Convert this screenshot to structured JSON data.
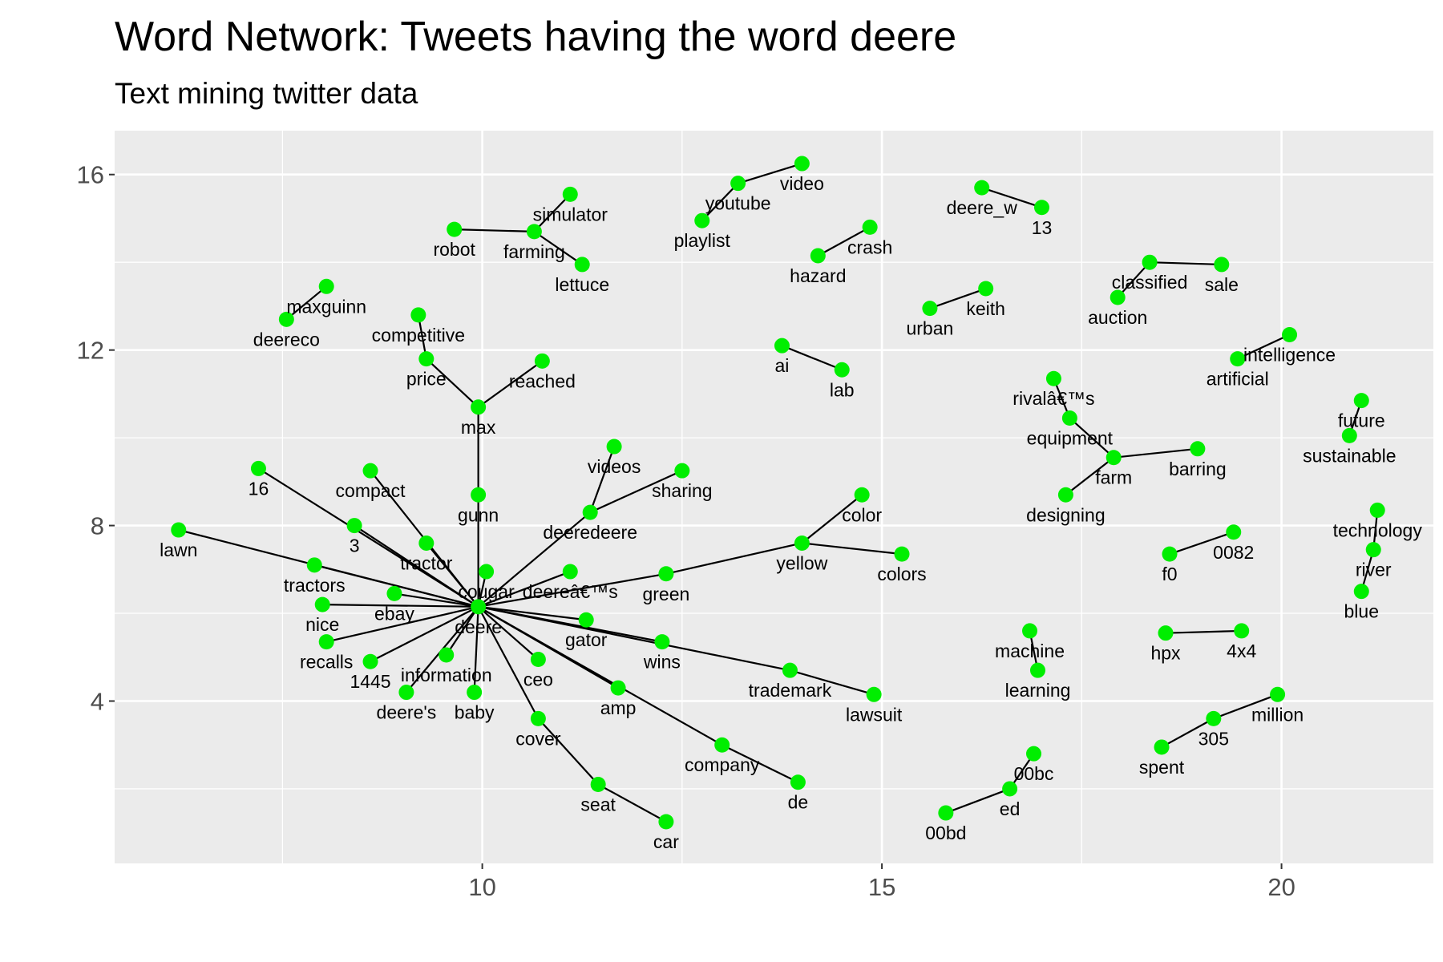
{
  "chart_data": {
    "type": "scatter",
    "title": "Word Network: Tweets having the word deere",
    "subtitle": "Text mining twitter data",
    "xlabel": "",
    "ylabel": "",
    "xlim": [
      5.4,
      21.9
    ],
    "ylim": [
      0.3,
      17.0
    ],
    "x_ticks": [
      10,
      15,
      20
    ],
    "y_ticks": [
      4,
      8,
      12,
      16
    ],
    "grid": true,
    "node_color": "#00ee00",
    "edge_color": "#000000",
    "panel_background": "#ebebeb",
    "nodes": [
      {
        "label": "deere",
        "x": 9.95,
        "y": 6.15
      },
      {
        "label": "lawn",
        "x": 6.2,
        "y": 7.9
      },
      {
        "label": "16",
        "x": 7.2,
        "y": 9.3
      },
      {
        "label": "compact",
        "x": 8.6,
        "y": 9.25
      },
      {
        "label": "3",
        "x": 8.4,
        "y": 8.0
      },
      {
        "label": "tractor",
        "x": 9.3,
        "y": 7.6
      },
      {
        "label": "tractors",
        "x": 7.9,
        "y": 7.1
      },
      {
        "label": "ebay",
        "x": 8.9,
        "y": 6.45
      },
      {
        "label": "nice",
        "x": 8.0,
        "y": 6.2
      },
      {
        "label": "recalls",
        "x": 8.05,
        "y": 5.35
      },
      {
        "label": "1445",
        "x": 8.6,
        "y": 4.9
      },
      {
        "label": "information",
        "x": 9.55,
        "y": 5.05
      },
      {
        "label": "deere's",
        "x": 9.05,
        "y": 4.2
      },
      {
        "label": "baby",
        "x": 9.9,
        "y": 4.2
      },
      {
        "label": "cougar",
        "x": 10.05,
        "y": 6.95
      },
      {
        "label": "deereâ€™s",
        "x": 11.1,
        "y": 6.95
      },
      {
        "label": "gator",
        "x": 11.3,
        "y": 5.85
      },
      {
        "label": "ceo",
        "x": 10.7,
        "y": 4.95
      },
      {
        "label": "cover",
        "x": 10.7,
        "y": 3.6
      },
      {
        "label": "seat",
        "x": 11.45,
        "y": 2.1
      },
      {
        "label": "car",
        "x": 12.3,
        "y": 1.25
      },
      {
        "label": "amp",
        "x": 11.7,
        "y": 4.3
      },
      {
        "label": "company",
        "x": 13.0,
        "y": 3.0
      },
      {
        "label": "de",
        "x": 13.95,
        "y": 2.15
      },
      {
        "label": "wins",
        "x": 12.25,
        "y": 5.35
      },
      {
        "label": "trademark",
        "x": 13.85,
        "y": 4.7
      },
      {
        "label": "lawsuit",
        "x": 14.9,
        "y": 4.15
      },
      {
        "label": "green",
        "x": 12.3,
        "y": 6.9
      },
      {
        "label": "yellow",
        "x": 14.0,
        "y": 7.6
      },
      {
        "label": "color",
        "x": 14.75,
        "y": 8.7
      },
      {
        "label": "colors",
        "x": 15.25,
        "y": 7.35
      },
      {
        "label": "deeredeere",
        "x": 11.35,
        "y": 8.3
      },
      {
        "label": "videos",
        "x": 11.65,
        "y": 9.8
      },
      {
        "label": "sharing",
        "x": 12.5,
        "y": 9.25
      },
      {
        "label": "gunn",
        "x": 9.95,
        "y": 8.7
      },
      {
        "label": "max",
        "x": 9.95,
        "y": 10.7
      },
      {
        "label": "price",
        "x": 9.3,
        "y": 11.8
      },
      {
        "label": "competitive",
        "x": 9.2,
        "y": 12.8
      },
      {
        "label": "reached",
        "x": 10.75,
        "y": 11.75
      },
      {
        "label": "deereco",
        "x": 7.55,
        "y": 12.7
      },
      {
        "label": "maxguinn",
        "x": 8.05,
        "y": 13.45
      },
      {
        "label": "robot",
        "x": 9.65,
        "y": 14.75
      },
      {
        "label": "farming",
        "x": 10.65,
        "y": 14.7
      },
      {
        "label": "simulator",
        "x": 11.1,
        "y": 15.55
      },
      {
        "label": "lettuce",
        "x": 11.25,
        "y": 13.95
      },
      {
        "label": "playlist",
        "x": 12.75,
        "y": 14.95
      },
      {
        "label": "youtube",
        "x": 13.2,
        "y": 15.8
      },
      {
        "label": "video",
        "x": 14.0,
        "y": 16.25
      },
      {
        "label": "hazard",
        "x": 14.2,
        "y": 14.15
      },
      {
        "label": "crash",
        "x": 14.85,
        "y": 14.8
      },
      {
        "label": "deere_w",
        "x": 16.25,
        "y": 15.7
      },
      {
        "label": "13",
        "x": 17.0,
        "y": 15.25
      },
      {
        "label": "urban",
        "x": 15.6,
        "y": 12.95
      },
      {
        "label": "keith",
        "x": 16.3,
        "y": 13.4
      },
      {
        "label": "ai",
        "x": 13.75,
        "y": 12.1
      },
      {
        "label": "lab",
        "x": 14.5,
        "y": 11.55
      },
      {
        "label": "classified",
        "x": 18.35,
        "y": 14.0
      },
      {
        "label": "sale",
        "x": 19.25,
        "y": 13.95
      },
      {
        "label": "auction",
        "x": 17.95,
        "y": 13.2
      },
      {
        "label": "intelligence",
        "x": 20.1,
        "y": 12.35
      },
      {
        "label": "artificial",
        "x": 19.45,
        "y": 11.8
      },
      {
        "label": "rivalâ€™s",
        "x": 17.15,
        "y": 11.35
      },
      {
        "label": "equipment",
        "x": 17.35,
        "y": 10.45
      },
      {
        "label": "farm",
        "x": 17.9,
        "y": 9.55
      },
      {
        "label": "barring",
        "x": 18.95,
        "y": 9.75
      },
      {
        "label": "designing",
        "x": 17.3,
        "y": 8.7
      },
      {
        "label": "future",
        "x": 21.0,
        "y": 10.85
      },
      {
        "label": "sustainable",
        "x": 20.85,
        "y": 10.05
      },
      {
        "label": "technology",
        "x": 21.2,
        "y": 8.35
      },
      {
        "label": "river",
        "x": 21.15,
        "y": 7.45
      },
      {
        "label": "blue",
        "x": 21.0,
        "y": 6.5
      },
      {
        "label": "f0",
        "x": 18.6,
        "y": 7.35
      },
      {
        "label": "0082",
        "x": 19.4,
        "y": 7.85
      },
      {
        "label": "hpx",
        "x": 18.55,
        "y": 5.55
      },
      {
        "label": "4x4",
        "x": 19.5,
        "y": 5.6
      },
      {
        "label": "machine",
        "x": 16.85,
        "y": 5.6
      },
      {
        "label": "learning",
        "x": 16.95,
        "y": 4.7
      },
      {
        "label": "million",
        "x": 19.95,
        "y": 4.15
      },
      {
        "label": "305",
        "x": 19.15,
        "y": 3.6
      },
      {
        "label": "spent",
        "x": 18.5,
        "y": 2.95
      },
      {
        "label": "00bc",
        "x": 16.9,
        "y": 2.8
      },
      {
        "label": "ed",
        "x": 16.6,
        "y": 2.0
      },
      {
        "label": "00bd",
        "x": 15.8,
        "y": 1.45
      }
    ],
    "edges": [
      [
        "deere",
        "lawn"
      ],
      [
        "deere",
        "16"
      ],
      [
        "deere",
        "compact"
      ],
      [
        "deere",
        "3"
      ],
      [
        "deere",
        "tractor"
      ],
      [
        "deere",
        "tractors"
      ],
      [
        "deere",
        "ebay"
      ],
      [
        "deere",
        "nice"
      ],
      [
        "deere",
        "recalls"
      ],
      [
        "deere",
        "1445"
      ],
      [
        "deere",
        "information"
      ],
      [
        "deere",
        "deere's"
      ],
      [
        "deere",
        "baby"
      ],
      [
        "deere",
        "cougar"
      ],
      [
        "deere",
        "deereâ€™s"
      ],
      [
        "deere",
        "gator"
      ],
      [
        "deere",
        "ceo"
      ],
      [
        "deere",
        "cover"
      ],
      [
        "cover",
        "seat"
      ],
      [
        "seat",
        "car"
      ],
      [
        "deere",
        "amp"
      ],
      [
        "deere",
        "company"
      ],
      [
        "company",
        "de"
      ],
      [
        "deere",
        "wins"
      ],
      [
        "deere",
        "trademark"
      ],
      [
        "trademark",
        "lawsuit"
      ],
      [
        "deere",
        "green"
      ],
      [
        "green",
        "yellow"
      ],
      [
        "yellow",
        "color"
      ],
      [
        "yellow",
        "colors"
      ],
      [
        "deere",
        "deeredeere"
      ],
      [
        "deeredeere",
        "videos"
      ],
      [
        "deeredeere",
        "sharing"
      ],
      [
        "deere",
        "gunn"
      ],
      [
        "gunn",
        "max"
      ],
      [
        "max",
        "price"
      ],
      [
        "price",
        "competitive"
      ],
      [
        "max",
        "reached"
      ],
      [
        "deereco",
        "maxguinn"
      ],
      [
        "robot",
        "farming"
      ],
      [
        "farming",
        "simulator"
      ],
      [
        "farming",
        "lettuce"
      ],
      [
        "playlist",
        "youtube"
      ],
      [
        "youtube",
        "video"
      ],
      [
        "hazard",
        "crash"
      ],
      [
        "deere_w",
        "13"
      ],
      [
        "urban",
        "keith"
      ],
      [
        "ai",
        "lab"
      ],
      [
        "classified",
        "sale"
      ],
      [
        "classified",
        "auction"
      ],
      [
        "intelligence",
        "artificial"
      ],
      [
        "rivalâ€™s",
        "equipment"
      ],
      [
        "equipment",
        "farm"
      ],
      [
        "farm",
        "barring"
      ],
      [
        "farm",
        "designing"
      ],
      [
        "future",
        "sustainable"
      ],
      [
        "technology",
        "river"
      ],
      [
        "river",
        "blue"
      ],
      [
        "f0",
        "0082"
      ],
      [
        "hpx",
        "4x4"
      ],
      [
        "machine",
        "learning"
      ],
      [
        "million",
        "305"
      ],
      [
        "305",
        "spent"
      ],
      [
        "00bc",
        "ed"
      ],
      [
        "ed",
        "00bd"
      ]
    ]
  }
}
